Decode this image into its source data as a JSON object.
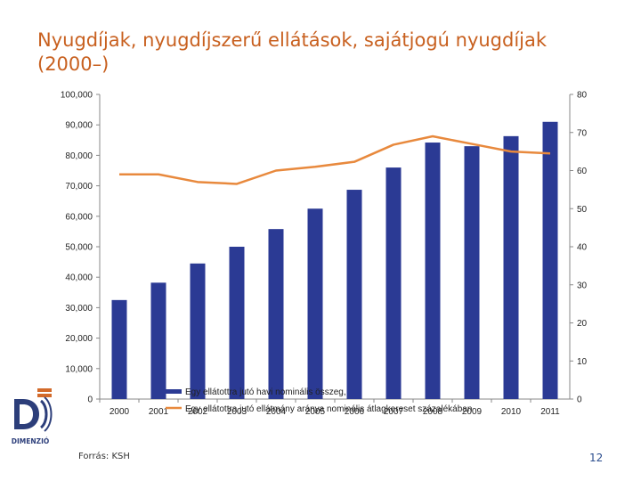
{
  "title": "Nyugdíjak, nyugdíjszerű ellátások, sajátjogú nyugdíjak (2000–)",
  "source": "Forrás: KSH",
  "page_number": "12",
  "logo_text": "DIMENZIÓ",
  "colors": {
    "title": "#c8601f",
    "bars": "#2b3a94",
    "line": "#e8893d",
    "axis": "#888888",
    "page_number": "#2d4f8f"
  },
  "chart_data": {
    "type": "bar",
    "categories": [
      "2000",
      "2001",
      "2002",
      "2003",
      "2004",
      "2005",
      "2006",
      "2007",
      "2008",
      "2009",
      "2010",
      "2011"
    ],
    "y_left": {
      "ylim": [
        0,
        100000
      ],
      "ticks": [
        0,
        10000,
        20000,
        30000,
        40000,
        50000,
        60000,
        70000,
        80000,
        90000,
        100000
      ],
      "tick_labels": [
        "0",
        "10,000",
        "20,000",
        "30,000",
        "40,000",
        "50,000",
        "60,000",
        "70,000",
        "80,000",
        "90,000",
        "100,000"
      ]
    },
    "y_right": {
      "ylim": [
        0,
        80
      ],
      "ticks": [
        0,
        10,
        20,
        30,
        40,
        50,
        60,
        70,
        80
      ],
      "tick_labels": [
        "0",
        "10",
        "20",
        "30",
        "40",
        "50",
        "60",
        "70",
        "80"
      ]
    },
    "series": [
      {
        "name": "Egy ellátottra jutó havi nominális összeg,",
        "type": "bar",
        "axis": "left",
        "values": [
          32500,
          38200,
          44500,
          50000,
          55800,
          62500,
          68700,
          76000,
          84200,
          83000,
          86300,
          91000
        ]
      },
      {
        "name": "Egy ellátottra jutó ellátmány aránya nominális átlagkereset százalékában",
        "type": "line",
        "axis": "right",
        "values": [
          59,
          59,
          57,
          56.5,
          60,
          61,
          62.3,
          66.8,
          69,
          67,
          65,
          64.5
        ]
      }
    ],
    "legend_placement": "bottom-center",
    "grid": false
  }
}
